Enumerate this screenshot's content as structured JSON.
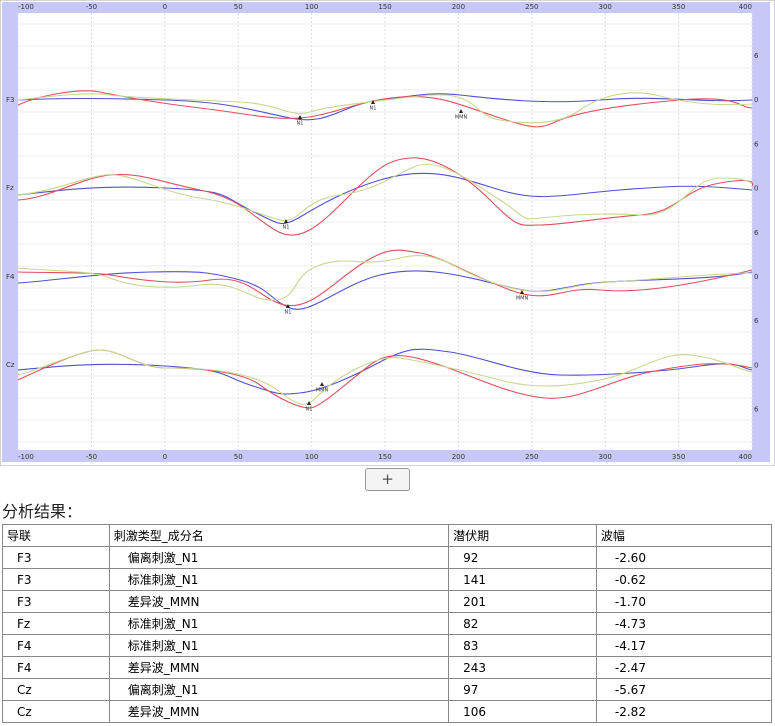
{
  "plot": {
    "xticks": [
      -100,
      -50,
      0,
      50,
      100,
      150,
      200,
      250,
      300,
      350,
      400
    ],
    "channels": [
      "F3",
      "Fz",
      "F4",
      "Cz"
    ],
    "right_labels": [
      "6",
      "0",
      "6",
      "0",
      "6",
      "0",
      "6",
      "0",
      "6"
    ],
    "markers": [
      "N1",
      "N1",
      "MMN",
      "N1",
      "N1",
      "MMN",
      "MMN",
      "N1"
    ]
  },
  "button": {
    "label": "+"
  },
  "section": {
    "title": "分析结果："
  },
  "table": {
    "headers": [
      "导联",
      "刺激类型_成分名",
      "潜伏期",
      "波幅"
    ],
    "rows": [
      [
        "F3",
        "偏离刺激_N1",
        "92",
        "-2.60"
      ],
      [
        "F3",
        "标准刺激_N1",
        "141",
        "-0.62"
      ],
      [
        "F3",
        "差异波_MMN",
        "201",
        "-1.70"
      ],
      [
        "Fz",
        "标准刺激_N1",
        "82",
        "-4.73"
      ],
      [
        "F4",
        "标准刺激_N1",
        "83",
        "-4.17"
      ],
      [
        "F4",
        "差异波_MMN",
        "243",
        "-2.47"
      ],
      [
        "Cz",
        "偏离刺激_N1",
        "97",
        "-5.67"
      ],
      [
        "Cz",
        "差异波_MMN",
        "106",
        "-2.82"
      ]
    ]
  }
}
